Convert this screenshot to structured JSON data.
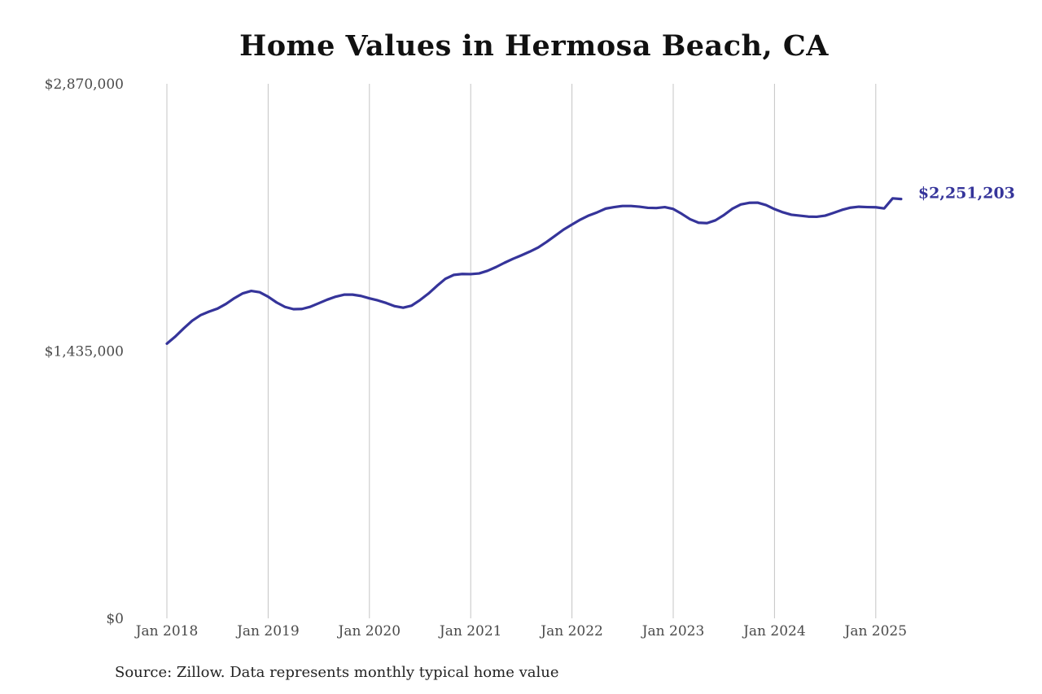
{
  "chart_data": {
    "type": "line",
    "title": "Home Values in Hermosa Beach, CA",
    "source": "Source: Zillow. Data represents monthly typical home value",
    "ylim": [
      0,
      2870000
    ],
    "yticks": [
      0,
      1435000,
      2870000
    ],
    "ytick_labels": [
      "$0",
      "$1,435,000",
      "$2,870,000"
    ],
    "x_range": [
      "2018-01",
      "2025-04"
    ],
    "xticks": [
      "2018-01",
      "2019-01",
      "2020-01",
      "2021-01",
      "2022-01",
      "2023-01",
      "2024-01",
      "2025-01"
    ],
    "xtick_labels": [
      "Jan 2018",
      "Jan 2019",
      "Jan 2020",
      "Jan 2021",
      "Jan 2022",
      "Jan 2023",
      "Jan 2024",
      "Jan 2025"
    ],
    "grid": "vertical",
    "line_color": "#35349a",
    "end_label": "$2,251,203",
    "series": [
      {
        "points": [
          [
            "2018-01",
            1475000
          ],
          [
            "2018-02",
            1513000
          ],
          [
            "2018-03",
            1557000
          ],
          [
            "2018-04",
            1598000
          ],
          [
            "2018-05",
            1628000
          ],
          [
            "2018-06",
            1647000
          ],
          [
            "2018-07",
            1663000
          ],
          [
            "2018-08",
            1688000
          ],
          [
            "2018-09",
            1719000
          ],
          [
            "2018-10",
            1745000
          ],
          [
            "2018-11",
            1758000
          ],
          [
            "2018-12",
            1751000
          ],
          [
            "2019-01",
            1727000
          ],
          [
            "2019-02",
            1696000
          ],
          [
            "2019-03",
            1672000
          ],
          [
            "2019-04",
            1660000
          ],
          [
            "2019-05",
            1661000
          ],
          [
            "2019-06",
            1673000
          ],
          [
            "2019-07",
            1692000
          ],
          [
            "2019-08",
            1711000
          ],
          [
            "2019-09",
            1727000
          ],
          [
            "2019-10",
            1738000
          ],
          [
            "2019-11",
            1738000
          ],
          [
            "2019-12",
            1731000
          ],
          [
            "2020-01",
            1718000
          ],
          [
            "2020-02",
            1707000
          ],
          [
            "2020-03",
            1693000
          ],
          [
            "2020-04",
            1676000
          ],
          [
            "2020-05",
            1668000
          ],
          [
            "2020-06",
            1679000
          ],
          [
            "2020-07",
            1709000
          ],
          [
            "2020-08",
            1744000
          ],
          [
            "2020-09",
            1785000
          ],
          [
            "2020-10",
            1823000
          ],
          [
            "2020-11",
            1844000
          ],
          [
            "2020-12",
            1849000
          ],
          [
            "2021-01",
            1848000
          ],
          [
            "2021-02",
            1852000
          ],
          [
            "2021-03",
            1866000
          ],
          [
            "2021-04",
            1886000
          ],
          [
            "2021-05",
            1909000
          ],
          [
            "2021-06",
            1930000
          ],
          [
            "2021-07",
            1949000
          ],
          [
            "2021-08",
            1969000
          ],
          [
            "2021-09",
            1991000
          ],
          [
            "2021-10",
            2021000
          ],
          [
            "2021-11",
            2054000
          ],
          [
            "2021-12",
            2087000
          ],
          [
            "2022-01",
            2114000
          ],
          [
            "2022-02",
            2141000
          ],
          [
            "2022-03",
            2163000
          ],
          [
            "2022-04",
            2180000
          ],
          [
            "2022-05",
            2200000
          ],
          [
            "2022-06",
            2208000
          ],
          [
            "2022-07",
            2214000
          ],
          [
            "2022-08",
            2214000
          ],
          [
            "2022-09",
            2210000
          ],
          [
            "2022-10",
            2204000
          ],
          [
            "2022-11",
            2203000
          ],
          [
            "2022-12",
            2208000
          ],
          [
            "2023-01",
            2198000
          ],
          [
            "2023-02",
            2172000
          ],
          [
            "2023-03",
            2143000
          ],
          [
            "2023-04",
            2124000
          ],
          [
            "2023-05",
            2122000
          ],
          [
            "2023-06",
            2137000
          ],
          [
            "2023-07",
            2165000
          ],
          [
            "2023-08",
            2199000
          ],
          [
            "2023-09",
            2222000
          ],
          [
            "2023-10",
            2231000
          ],
          [
            "2023-11",
            2232000
          ],
          [
            "2023-12",
            2219000
          ],
          [
            "2024-01",
            2197000
          ],
          [
            "2024-02",
            2180000
          ],
          [
            "2024-03",
            2167000
          ],
          [
            "2024-04",
            2162000
          ],
          [
            "2024-05",
            2157000
          ],
          [
            "2024-06",
            2156000
          ],
          [
            "2024-07",
            2162000
          ],
          [
            "2024-08",
            2177000
          ],
          [
            "2024-09",
            2193000
          ],
          [
            "2024-10",
            2205000
          ],
          [
            "2024-11",
            2210000
          ],
          [
            "2024-12",
            2208000
          ],
          [
            "2025-01",
            2207000
          ],
          [
            "2025-02",
            2201000
          ],
          [
            "2025-03",
            2255000
          ],
          [
            "2025-04",
            2251203
          ]
        ]
      }
    ]
  }
}
